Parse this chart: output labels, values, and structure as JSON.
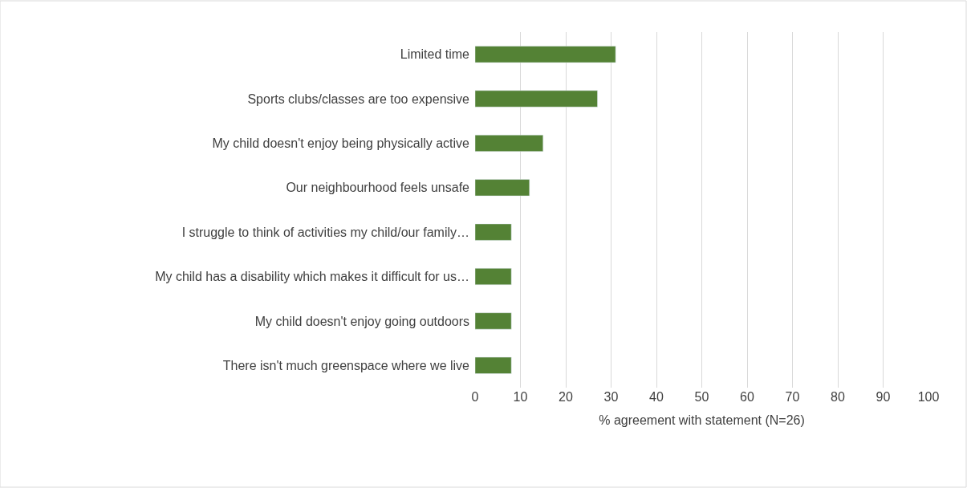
{
  "chart_data": {
    "type": "bar",
    "orientation": "horizontal",
    "xlabel": "% agreement with statement (N=26)",
    "categories": [
      "Limited time",
      "Sports clubs/classes are too expensive",
      "My child doesn't enjoy being physically active",
      "Our neighbourhood feels unsafe",
      "I struggle to think of activities my child/our family…",
      "My child has a disability which makes it difficult for us…",
      "My child doesn't enjoy going outdoors",
      "There isn't much greenspace where we live"
    ],
    "values": [
      31,
      27,
      15,
      12,
      8,
      8,
      8,
      8
    ],
    "color": "#548235",
    "xlim": [
      0,
      100
    ],
    "xticks": [
      0,
      10,
      20,
      30,
      40,
      50,
      60,
      70,
      80,
      90,
      100
    ],
    "grid": "x"
  }
}
